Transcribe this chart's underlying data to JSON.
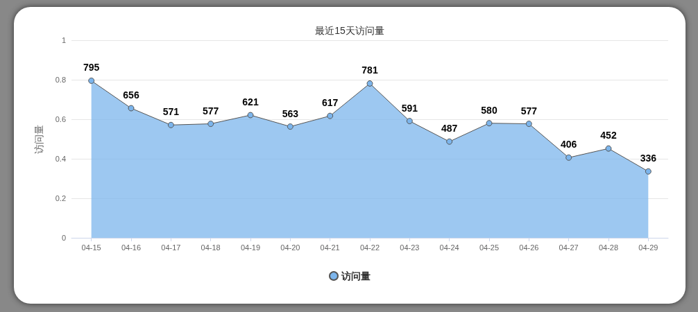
{
  "chart_data": {
    "type": "area",
    "title": "最近15天访问量",
    "ylabel": "访问量",
    "categories": [
      "04-15",
      "04-16",
      "04-17",
      "04-18",
      "04-19",
      "04-20",
      "04-21",
      "04-22",
      "04-23",
      "04-24",
      "04-25",
      "04-26",
      "04-27",
      "04-28",
      "04-29"
    ],
    "series": [
      {
        "name": "访问量",
        "color": "#7cb5ec",
        "values": [
          0.795,
          0.656,
          0.571,
          0.577,
          0.621,
          0.563,
          0.617,
          0.781,
          0.591,
          0.487,
          0.58,
          0.577,
          0.406,
          0.452,
          0.336
        ]
      }
    ],
    "annotations": [
      {
        "text": "795",
        "x": "04-15",
        "y": 0.795
      },
      {
        "text": "656",
        "x": "04-16",
        "y": 0.656
      },
      {
        "text": "571",
        "x": "04-17",
        "y": 0.571
      },
      {
        "text": "577",
        "x": "04-18",
        "y": 0.577
      },
      {
        "text": "621",
        "x": "04-19",
        "y": 0.621
      },
      {
        "text": "563",
        "x": "04-20",
        "y": 0.563
      },
      {
        "text": "617",
        "x": "04-21",
        "y": 0.617
      },
      {
        "text": "781",
        "x": "04-22",
        "y": 0.781
      },
      {
        "text": "591",
        "x": "04-23",
        "y": 0.591
      },
      {
        "text": "487",
        "x": "04-24",
        "y": 0.487
      },
      {
        "text": "580",
        "x": "04-25",
        "y": 0.58
      },
      {
        "text": "577",
        "x": "04-26",
        "y": 0.577
      },
      {
        "text": "406",
        "x": "04-27",
        "y": 0.406
      },
      {
        "text": "452",
        "x": "04-28",
        "y": 0.452
      },
      {
        "text": "336",
        "x": "04-29",
        "y": 0.336
      }
    ],
    "ylim": [
      0,
      1
    ],
    "yticks": [
      0,
      0.2,
      0.4,
      0.6,
      0.8,
      1
    ],
    "grid": "y",
    "legend": "bottom",
    "marker": "circle"
  }
}
